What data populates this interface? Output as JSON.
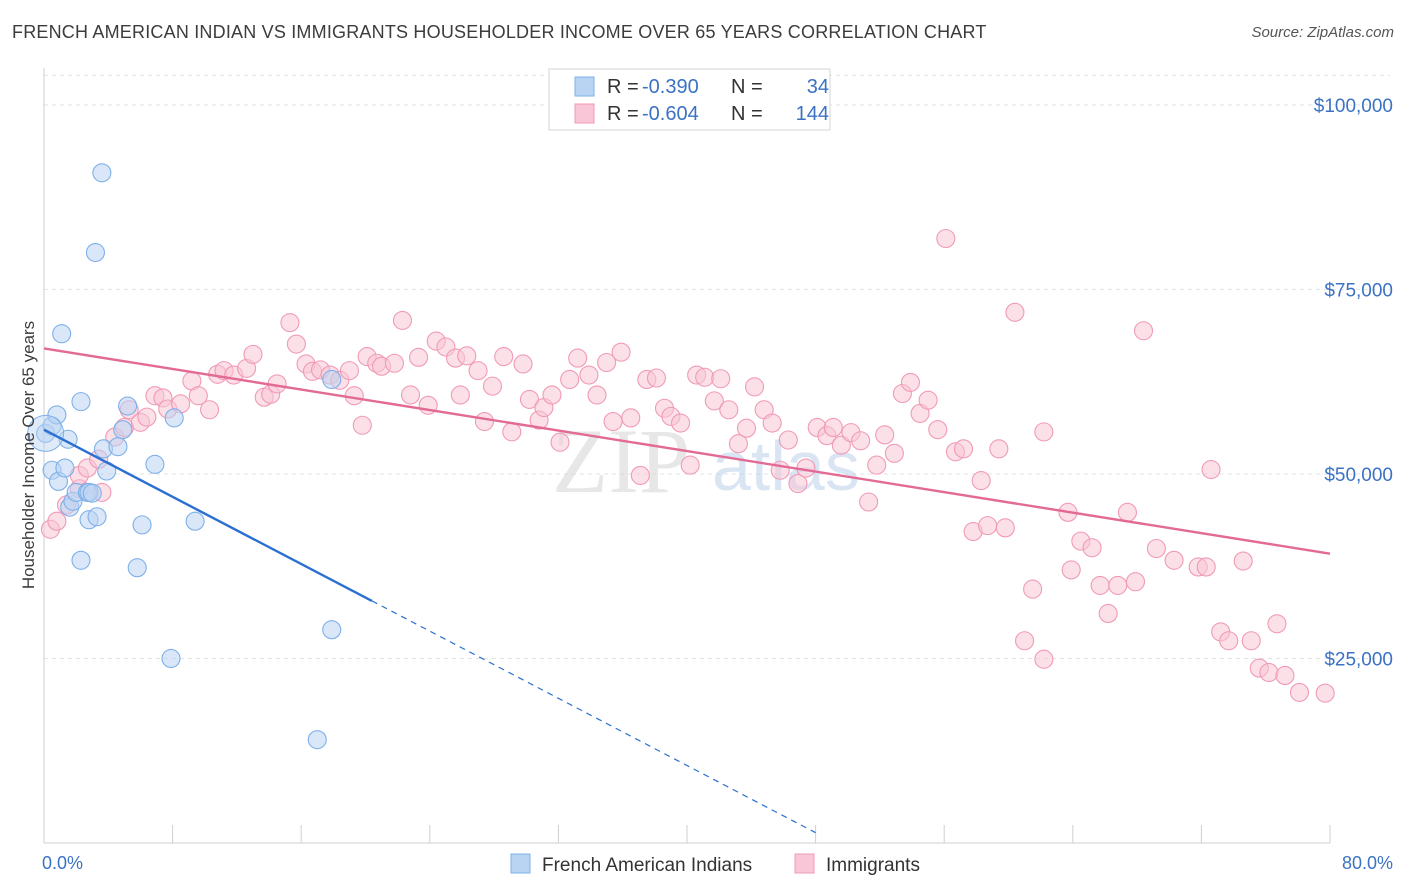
{
  "title": "FRENCH AMERICAN INDIAN VS IMMIGRANTS HOUSEHOLDER INCOME OVER 65 YEARS CORRELATION CHART",
  "source": "Source: ZipAtlas.com",
  "watermark": {
    "part1": "ZIP",
    "part2": "atlas"
  },
  "chart_data": {
    "type": "scatter",
    "title": "FRENCH AMERICAN INDIAN VS IMMIGRANTS HOUSEHOLDER INCOME OVER 65 YEARS CORRELATION CHART",
    "xlabel": "",
    "ylabel": "Householder Income Over 65 years",
    "xlim": [
      0,
      80
    ],
    "ylim": [
      0,
      105000
    ],
    "x_tick_labels": [
      "0.0%",
      "80.0%"
    ],
    "y_ticks": [
      25000,
      50000,
      75000,
      100000
    ],
    "y_tick_labels": [
      "$25,000",
      "$50,000",
      "$75,000",
      "$100,000"
    ],
    "grid": true,
    "legend_top": [
      {
        "r_label": "R = ",
        "r_value": "-0.390",
        "n_label": "N = ",
        "n_value": "34"
      },
      {
        "r_label": "R = ",
        "r_value": "-0.604",
        "n_label": "N = ",
        "n_value": "144"
      }
    ],
    "series": [
      {
        "name": "French American Indians",
        "color": "#7eb0ea",
        "fill": "#b9d3f2",
        "line_color": "#2a6fd1",
        "trend": {
          "x0": 0,
          "y0": 56000,
          "x1": 20.4,
          "y1": 32800,
          "dash_x1": 48,
          "dash_y1": 1400
        },
        "points": [
          [
            0.1,
            55500
          ],
          [
            0.5,
            56500
          ],
          [
            0.5,
            50500
          ],
          [
            0.8,
            58000
          ],
          [
            0.9,
            49000
          ],
          [
            1.1,
            69000
          ],
          [
            1.3,
            50800
          ],
          [
            1.5,
            54700
          ],
          [
            1.6,
            45500
          ],
          [
            1.8,
            46300
          ],
          [
            2.0,
            47500
          ],
          [
            2.3,
            59800
          ],
          [
            2.3,
            38300
          ],
          [
            2.7,
            47500
          ],
          [
            2.8,
            47500
          ],
          [
            2.8,
            43800
          ],
          [
            3.0,
            47400
          ],
          [
            3.2,
            80000
          ],
          [
            3.3,
            44200
          ],
          [
            3.6,
            90800
          ],
          [
            3.7,
            53400
          ],
          [
            3.9,
            50400
          ],
          [
            4.6,
            53700
          ],
          [
            4.9,
            56000
          ],
          [
            5.2,
            59200
          ],
          [
            5.8,
            37300
          ],
          [
            6.1,
            43100
          ],
          [
            6.9,
            51300
          ],
          [
            7.9,
            25000
          ],
          [
            8.1,
            57600
          ],
          [
            9.4,
            43600
          ],
          [
            17.0,
            14000
          ],
          [
            17.9,
            28900
          ],
          [
            17.9,
            62800
          ]
        ]
      },
      {
        "name": "Immigrants",
        "color": "#f19ab6",
        "fill": "#f8c6d6",
        "line_color": "#e26a94",
        "trend": {
          "x0": 0,
          "y0": 67000,
          "x1": 80,
          "y1": 39200
        },
        "points": [
          [
            0.4,
            42500
          ],
          [
            0.8,
            43600
          ],
          [
            1.4,
            45800
          ],
          [
            2.2,
            48000
          ],
          [
            2.2,
            49800
          ],
          [
            2.7,
            50800
          ],
          [
            3.4,
            52000
          ],
          [
            3.6,
            47500
          ],
          [
            4.4,
            55000
          ],
          [
            5.0,
            56300
          ],
          [
            5.3,
            58700
          ],
          [
            6.0,
            57000
          ],
          [
            6.4,
            57700
          ],
          [
            6.9,
            60600
          ],
          [
            7.4,
            60300
          ],
          [
            7.7,
            58800
          ],
          [
            8.5,
            59500
          ],
          [
            9.2,
            62600
          ],
          [
            9.6,
            60600
          ],
          [
            10.3,
            58700
          ],
          [
            10.8,
            63500
          ],
          [
            11.2,
            64000
          ],
          [
            11.8,
            63400
          ],
          [
            12.6,
            64300
          ],
          [
            13.0,
            66200
          ],
          [
            13.7,
            60400
          ],
          [
            14.1,
            60800
          ],
          [
            14.5,
            62200
          ],
          [
            15.3,
            70500
          ],
          [
            15.7,
            67600
          ],
          [
            16.3,
            64900
          ],
          [
            16.7,
            63900
          ],
          [
            17.2,
            64100
          ],
          [
            17.8,
            63400
          ],
          [
            18.4,
            62700
          ],
          [
            19.0,
            64000
          ],
          [
            19.3,
            60600
          ],
          [
            19.8,
            56600
          ],
          [
            20.1,
            65900
          ],
          [
            20.7,
            65000
          ],
          [
            21.0,
            64600
          ],
          [
            21.8,
            65000
          ],
          [
            22.3,
            70800
          ],
          [
            22.8,
            60700
          ],
          [
            23.3,
            65800
          ],
          [
            23.9,
            59300
          ],
          [
            24.4,
            68000
          ],
          [
            25.0,
            67200
          ],
          [
            25.6,
            65700
          ],
          [
            25.9,
            60700
          ],
          [
            26.3,
            66000
          ],
          [
            27.0,
            64000
          ],
          [
            27.4,
            57100
          ],
          [
            27.9,
            61900
          ],
          [
            28.6,
            65900
          ],
          [
            29.1,
            55700
          ],
          [
            29.8,
            64900
          ],
          [
            30.2,
            60100
          ],
          [
            30.8,
            57300
          ],
          [
            31.1,
            59000
          ],
          [
            31.6,
            60700
          ],
          [
            32.1,
            54300
          ],
          [
            32.7,
            62800
          ],
          [
            33.2,
            65700
          ],
          [
            33.9,
            63400
          ],
          [
            34.4,
            60700
          ],
          [
            35.0,
            65100
          ],
          [
            35.4,
            57100
          ],
          [
            35.9,
            66500
          ],
          [
            36.5,
            57600
          ],
          [
            37.1,
            49800
          ],
          [
            37.5,
            62800
          ],
          [
            38.1,
            63000
          ],
          [
            38.6,
            58900
          ],
          [
            39.0,
            57800
          ],
          [
            39.6,
            56900
          ],
          [
            40.2,
            51200
          ],
          [
            40.6,
            63400
          ],
          [
            41.1,
            63100
          ],
          [
            41.7,
            59900
          ],
          [
            42.1,
            62900
          ],
          [
            42.6,
            58700
          ],
          [
            43.2,
            54100
          ],
          [
            43.7,
            56200
          ],
          [
            44.2,
            61800
          ],
          [
            44.8,
            58700
          ],
          [
            45.3,
            56900
          ],
          [
            45.8,
            50500
          ],
          [
            46.3,
            54600
          ],
          [
            46.9,
            48700
          ],
          [
            47.4,
            50800
          ],
          [
            48.1,
            56300
          ],
          [
            48.7,
            55200
          ],
          [
            49.1,
            56300
          ],
          [
            49.6,
            53900
          ],
          [
            50.2,
            55600
          ],
          [
            50.8,
            54500
          ],
          [
            51.3,
            46200
          ],
          [
            51.8,
            51200
          ],
          [
            52.3,
            55300
          ],
          [
            52.9,
            52800
          ],
          [
            53.4,
            60900
          ],
          [
            53.9,
            62400
          ],
          [
            54.5,
            58200
          ],
          [
            55.0,
            60000
          ],
          [
            55.6,
            56000
          ],
          [
            56.1,
            81900
          ],
          [
            56.7,
            53000
          ],
          [
            57.2,
            53400
          ],
          [
            57.8,
            42200
          ],
          [
            58.3,
            49100
          ],
          [
            58.7,
            43000
          ],
          [
            59.4,
            53400
          ],
          [
            59.8,
            42700
          ],
          [
            60.4,
            71900
          ],
          [
            61.0,
            27400
          ],
          [
            61.5,
            34400
          ],
          [
            62.2,
            55700
          ],
          [
            62.2,
            24900
          ],
          [
            63.7,
            44800
          ],
          [
            63.9,
            37000
          ],
          [
            64.5,
            40900
          ],
          [
            65.2,
            40000
          ],
          [
            65.7,
            34900
          ],
          [
            66.2,
            31100
          ],
          [
            66.8,
            34900
          ],
          [
            67.4,
            44800
          ],
          [
            67.9,
            35400
          ],
          [
            68.4,
            69400
          ],
          [
            69.2,
            39900
          ],
          [
            70.3,
            38300
          ],
          [
            71.8,
            37400
          ],
          [
            72.3,
            37400
          ],
          [
            72.6,
            50600
          ],
          [
            73.2,
            28600
          ],
          [
            73.7,
            27400
          ],
          [
            74.6,
            38200
          ],
          [
            75.1,
            27400
          ],
          [
            75.6,
            23700
          ],
          [
            76.2,
            23100
          ],
          [
            76.7,
            29700
          ],
          [
            77.2,
            22700
          ],
          [
            78.1,
            20400
          ],
          [
            79.7,
            20300
          ]
        ]
      }
    ]
  }
}
